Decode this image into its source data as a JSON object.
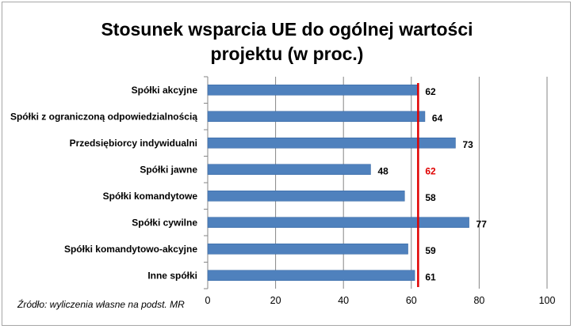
{
  "chart_data": {
    "type": "bar",
    "orientation": "horizontal",
    "title_lines": [
      "Stosunek wsparcia UE do ogólnej wartości",
      "projektu (w proc.)"
    ],
    "categories": [
      "Spółki akcyjne",
      "Spółki z ograniczoną odpowiedzialnością",
      "Przedsiębiorcy indywidualni",
      "Spółki jawne",
      "Spółki komandytowe",
      "Spółki cywilne",
      "Spółki komandytowo-akcyjne",
      "Inne spółki"
    ],
    "values": [
      62,
      64,
      73,
      48,
      58,
      77,
      59,
      61
    ],
    "reference_line": {
      "value": 62,
      "label": "62",
      "color": "#e00000"
    },
    "xlim": [
      0,
      100
    ],
    "xticks": [
      0,
      20,
      40,
      60,
      80,
      100
    ],
    "grid": "vertical",
    "bar_color": "#4f81bd",
    "source": "Źródło: wyliczenia własne na podst. MR"
  }
}
